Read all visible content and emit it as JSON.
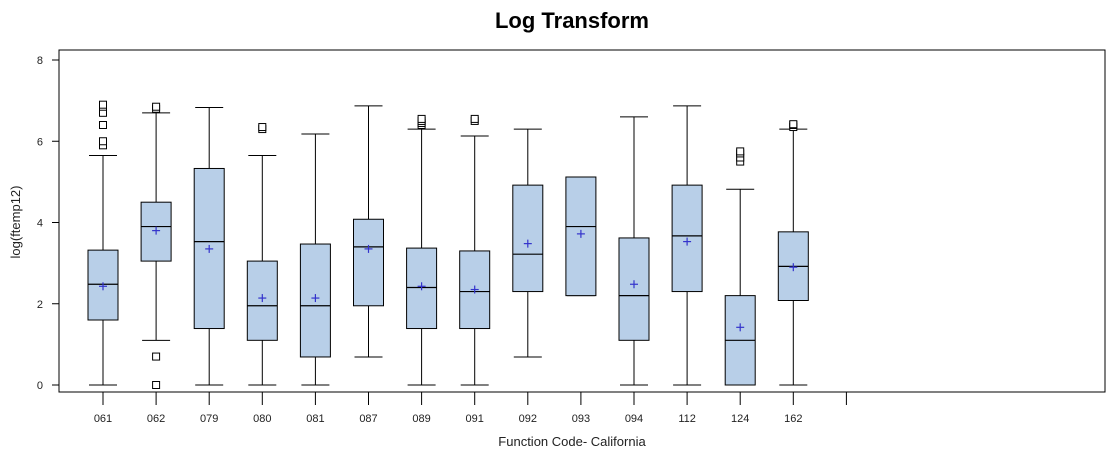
{
  "chart_data": {
    "type": "box",
    "title": "Log Transform",
    "xlabel": "Function Code- California",
    "ylabel": "log(ftemp12)",
    "ylim": [
      0,
      8
    ],
    "yticks": [
      0,
      2,
      4,
      6,
      8
    ],
    "grid": false,
    "colors": {
      "box_fill": "#b8cfe8",
      "mean_marker": "#3333cc",
      "line": "#000000"
    },
    "categories": [
      "061",
      "062",
      "079",
      "080",
      "081",
      "087",
      "089",
      "091",
      "092",
      "093",
      "094",
      "112",
      "124",
      "162"
    ],
    "boxes": [
      {
        "category": "061",
        "min": 0.0,
        "q1": 1.6,
        "median": 2.48,
        "q3": 3.32,
        "max": 5.65,
        "mean": 2.43,
        "outliers": [
          5.9,
          6.0,
          6.4,
          6.7,
          6.85,
          6.9
        ]
      },
      {
        "category": "062",
        "min": 1.1,
        "q1": 3.05,
        "median": 3.9,
        "q3": 4.5,
        "max": 6.7,
        "mean": 3.8,
        "outliers": [
          0.0,
          0.7,
          6.8,
          6.85
        ]
      },
      {
        "category": "079",
        "min": 0.0,
        "q1": 1.39,
        "median": 3.53,
        "q3": 5.33,
        "max": 6.83,
        "mean": 3.35,
        "outliers": []
      },
      {
        "category": "080",
        "min": 0.0,
        "q1": 1.1,
        "median": 1.95,
        "q3": 3.05,
        "max": 5.65,
        "mean": 2.14,
        "outliers": [
          6.3,
          6.35
        ]
      },
      {
        "category": "081",
        "min": 0.0,
        "q1": 0.69,
        "median": 1.95,
        "q3": 3.47,
        "max": 6.18,
        "mean": 2.14,
        "outliers": []
      },
      {
        "category": "087",
        "min": 0.69,
        "q1": 1.95,
        "median": 3.4,
        "q3": 4.08,
        "max": 6.87,
        "mean": 3.35,
        "outliers": []
      },
      {
        "category": "089",
        "min": 0.0,
        "q1": 1.39,
        "median": 2.4,
        "q3": 3.37,
        "max": 6.3,
        "mean": 2.43,
        "outliers": [
          6.4,
          6.45,
          6.5,
          6.55
        ]
      },
      {
        "category": "091",
        "min": 0.0,
        "q1": 1.39,
        "median": 2.3,
        "q3": 3.3,
        "max": 6.13,
        "mean": 2.35,
        "outliers": [
          6.5,
          6.55
        ]
      },
      {
        "category": "092",
        "min": 0.69,
        "q1": 2.3,
        "median": 3.22,
        "q3": 4.92,
        "max": 6.3,
        "mean": 3.48,
        "outliers": []
      },
      {
        "category": "093",
        "min": 2.2,
        "q1": 2.2,
        "median": 3.9,
        "q3": 5.12,
        "max": 5.12,
        "mean": 3.72,
        "outliers": []
      },
      {
        "category": "094",
        "min": 0.0,
        "q1": 1.1,
        "median": 2.2,
        "q3": 3.62,
        "max": 6.6,
        "mean": 2.48,
        "outliers": []
      },
      {
        "category": "112",
        "min": 0.0,
        "q1": 2.3,
        "median": 3.67,
        "q3": 4.92,
        "max": 6.87,
        "mean": 3.53,
        "outliers": []
      },
      {
        "category": "124",
        "min": 0.0,
        "q1": 0.0,
        "median": 1.1,
        "q3": 2.2,
        "max": 4.82,
        "mean": 1.42,
        "outliers": [
          5.5,
          5.6,
          5.7,
          5.75
        ]
      },
      {
        "category": "162",
        "min": 0.0,
        "q1": 2.08,
        "median": 2.92,
        "q3": 3.77,
        "max": 6.3,
        "mean": 2.9,
        "outliers": [
          6.35,
          6.4,
          6.42
        ]
      }
    ]
  }
}
